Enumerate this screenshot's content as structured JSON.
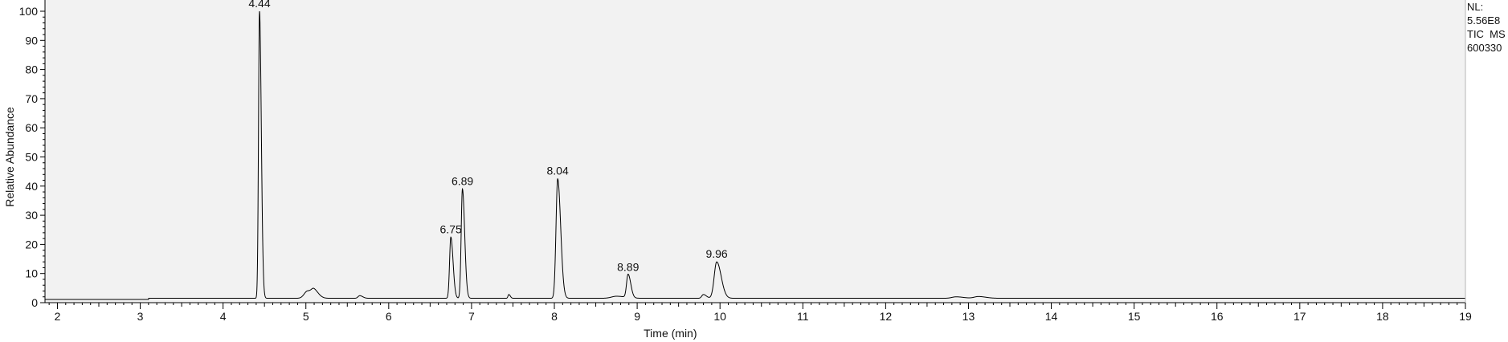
{
  "info": {
    "nl": "NL:",
    "nl_value": "5.56E8",
    "scan_filter": "TIC  MS",
    "file_name": "600330"
  },
  "chart_data": {
    "type": "line",
    "title": "",
    "xlabel": "Time (min)",
    "ylabel": "Relative Abundance",
    "xlim": [
      1.85,
      19.0
    ],
    "ylim": [
      0,
      100
    ],
    "x_ticks": [
      2,
      3,
      4,
      5,
      6,
      7,
      8,
      9,
      10,
      11,
      12,
      13,
      14,
      15,
      16,
      17,
      18,
      19
    ],
    "y_ticks": [
      0,
      10,
      20,
      30,
      40,
      50,
      60,
      70,
      80,
      90,
      100
    ],
    "grid": false,
    "legend": "none",
    "baseline": 1.5,
    "colors": {
      "plot_bg": "#f2f2f2",
      "trace": "#000000",
      "axis": "#000000"
    },
    "peaks": [
      {
        "label": "4.44",
        "x": 4.44,
        "y": 100,
        "width": 0.012
      },
      {
        "label": "6.75",
        "x": 6.75,
        "y": 22.5,
        "width": 0.015
      },
      {
        "label": "6.89",
        "x": 6.89,
        "y": 39,
        "width": 0.015
      },
      {
        "label": "8.04",
        "x": 8.04,
        "y": 42.5,
        "width": 0.02
      },
      {
        "label": "8.89",
        "x": 8.89,
        "y": 9.5,
        "width": 0.018
      },
      {
        "label": "9.96",
        "x": 9.96,
        "y": 14,
        "width": 0.03
      }
    ],
    "minor_features": [
      {
        "x": 5.02,
        "y": 4.0,
        "width": 0.04
      },
      {
        "x": 5.1,
        "y": 3.5,
        "width": 0.03
      },
      {
        "x": 5.65,
        "y": 2.4,
        "width": 0.02
      },
      {
        "x": 7.45,
        "y": 2.8,
        "width": 0.01
      },
      {
        "x": 8.75,
        "y": 2.2,
        "width": 0.06
      },
      {
        "x": 9.8,
        "y": 2.8,
        "width": 0.02
      },
      {
        "x": 12.85,
        "y": 2.0,
        "width": 0.05
      },
      {
        "x": 13.12,
        "y": 2.1,
        "width": 0.05
      }
    ]
  }
}
